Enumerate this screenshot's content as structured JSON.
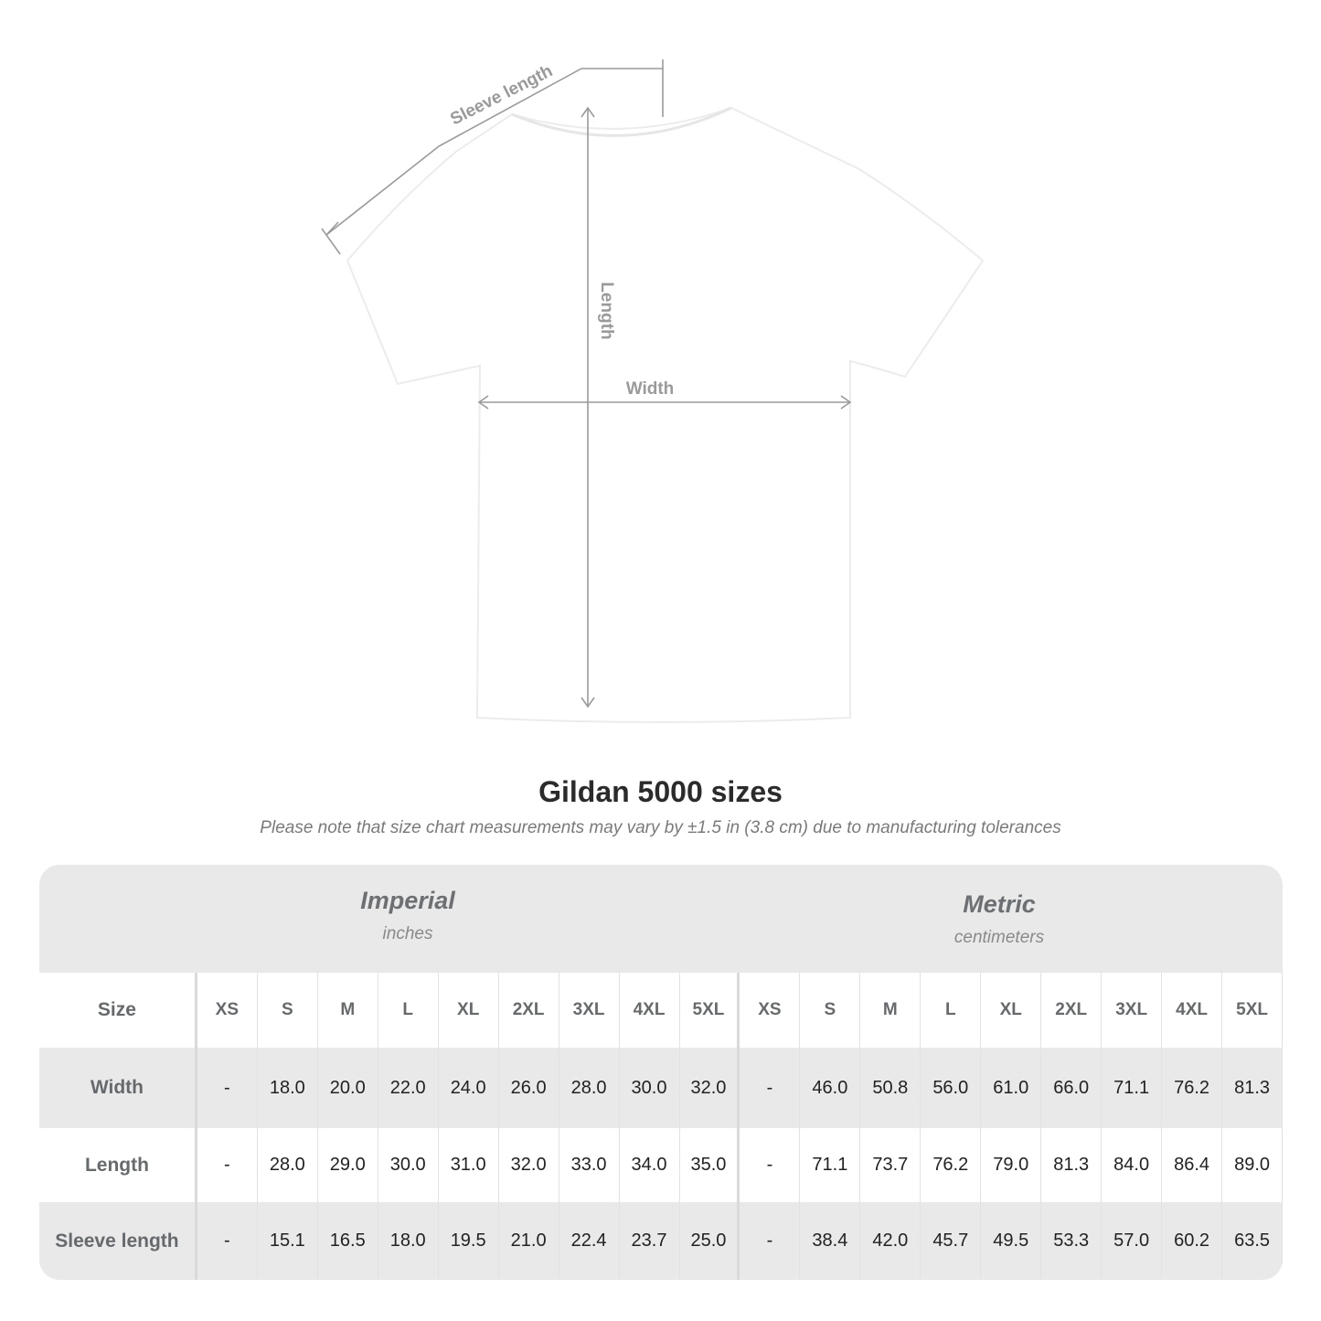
{
  "diagram": {
    "labels": {
      "sleeve_length": "Sleeve length",
      "length": "Length",
      "width": "Width"
    },
    "line_color": "#9a9a9a"
  },
  "title": "Gildan 5000 sizes",
  "note": "Please note that size chart measurements may vary by ±1.5 in (3.8 cm) due to manufacturing tolerances",
  "table": {
    "imperial": {
      "name": "Imperial",
      "unit": "inches"
    },
    "metric": {
      "name": "Metric",
      "unit": "centimeters"
    },
    "size_label": "Size",
    "sizes": [
      "XS",
      "S",
      "M",
      "L",
      "XL",
      "2XL",
      "3XL",
      "4XL",
      "5XL"
    ],
    "rows": [
      {
        "label": "Width",
        "imperial": [
          "-",
          "18.0",
          "20.0",
          "22.0",
          "24.0",
          "26.0",
          "28.0",
          "30.0",
          "32.0"
        ],
        "metric": [
          "-",
          "46.0",
          "50.8",
          "56.0",
          "61.0",
          "66.0",
          "71.1",
          "76.2",
          "81.3"
        ]
      },
      {
        "label": "Length",
        "imperial": [
          "-",
          "28.0",
          "29.0",
          "30.0",
          "31.0",
          "32.0",
          "33.0",
          "34.0",
          "35.0"
        ],
        "metric": [
          "-",
          "71.1",
          "73.7",
          "76.2",
          "79.0",
          "81.3",
          "84.0",
          "86.4",
          "89.0"
        ]
      },
      {
        "label": "Sleeve length",
        "imperial": [
          "-",
          "15.1",
          "16.5",
          "18.0",
          "19.5",
          "21.0",
          "22.4",
          "23.7",
          "25.0"
        ],
        "metric": [
          "-",
          "38.4",
          "42.0",
          "45.7",
          "49.5",
          "53.3",
          "57.0",
          "60.2",
          "63.5"
        ]
      }
    ]
  }
}
